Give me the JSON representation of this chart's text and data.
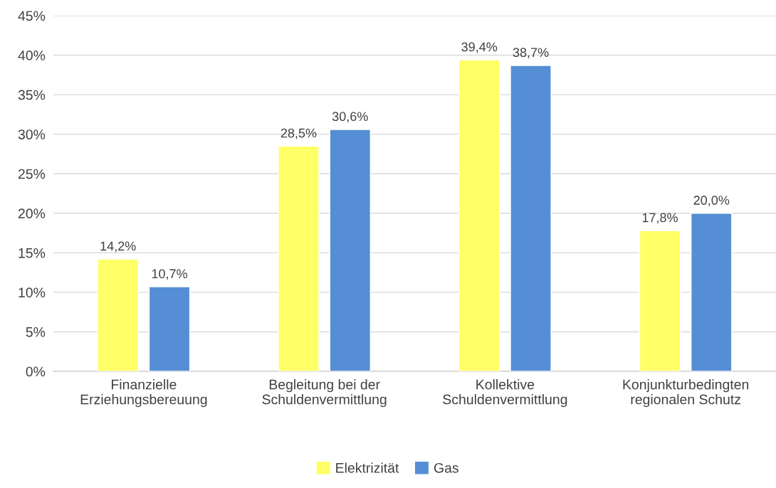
{
  "chart_data": {
    "type": "bar",
    "categories": [
      "Finanzielle\nErziehungsbereuung",
      "Begleitung bei der\nSchuldenvermittlung",
      "Kollektive\nSchuldenvermittlung",
      "Konjunkturbedingten\nregionalen Schutz"
    ],
    "series": [
      {
        "name": "Elektrizität",
        "color": "#ffff66",
        "values": [
          14.2,
          28.5,
          39.4,
          17.8
        ],
        "value_labels": [
          "14,2%",
          "28,5%",
          "39,4%",
          "17,8%"
        ]
      },
      {
        "name": "Gas",
        "color": "#558ed5",
        "values": [
          10.7,
          30.6,
          38.7,
          20.0
        ],
        "value_labels": [
          "10,7%",
          "30,6%",
          "38,7%",
          "20,0%"
        ]
      }
    ],
    "ylim": [
      0,
      45
    ],
    "yticks": [
      {
        "value": 0,
        "label": "0%"
      },
      {
        "value": 5,
        "label": "5%"
      },
      {
        "value": 10,
        "label": "10%"
      },
      {
        "value": 15,
        "label": "15%"
      },
      {
        "value": 20,
        "label": "20%"
      },
      {
        "value": 25,
        "label": "25%"
      },
      {
        "value": 30,
        "label": "30%"
      },
      {
        "value": 35,
        "label": "35%"
      },
      {
        "value": 40,
        "label": "40%"
      },
      {
        "value": 45,
        "label": "45%"
      }
    ],
    "grid": "y",
    "legend": "bottom"
  }
}
